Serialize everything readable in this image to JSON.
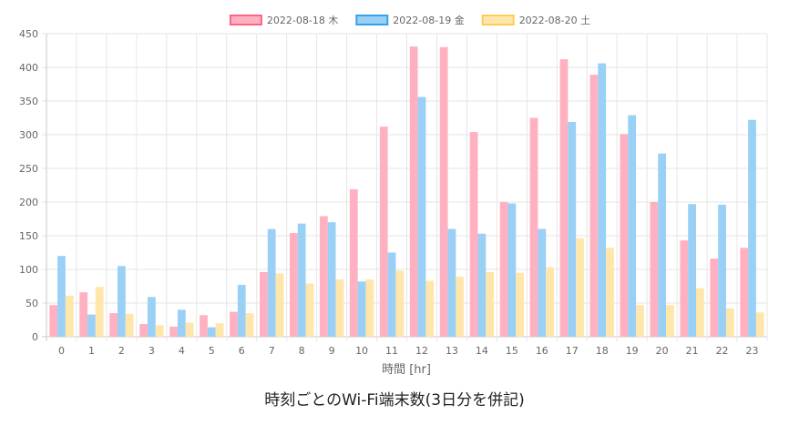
{
  "chart_data": {
    "type": "bar",
    "xlabel": "時間 [hr]",
    "ylabel": "",
    "ylim": [
      0,
      450
    ],
    "yticks": [
      0,
      50,
      100,
      150,
      200,
      250,
      300,
      350,
      400,
      450
    ],
    "grid": true,
    "legend_position": "top-center",
    "categories": [
      "0",
      "1",
      "2",
      "3",
      "4",
      "5",
      "6",
      "7",
      "8",
      "9",
      "10",
      "11",
      "12",
      "13",
      "14",
      "15",
      "16",
      "17",
      "18",
      "19",
      "20",
      "21",
      "22",
      "23"
    ],
    "series": [
      {
        "name": "2022-08-18 木",
        "color": "#ffb1c1",
        "border": "#ff6384",
        "values": [
          47,
          66,
          35,
          19,
          15,
          32,
          37,
          96,
          154,
          179,
          219,
          312,
          431,
          430,
          304,
          200,
          325,
          412,
          389,
          301,
          200,
          143,
          116,
          132
        ]
      },
      {
        "name": "2022-08-19 金",
        "color": "#9ad0f5",
        "border": "#36a2eb",
        "values": [
          120,
          33,
          105,
          59,
          40,
          14,
          77,
          160,
          168,
          170,
          82,
          125,
          356,
          160,
          153,
          198,
          160,
          319,
          406,
          329,
          272,
          197,
          196,
          322
        ]
      },
      {
        "name": "2022-08-20 土",
        "color": "#ffe6aa",
        "border": "#ffcd56",
        "values": [
          61,
          74,
          34,
          17,
          21,
          20,
          35,
          94,
          79,
          85,
          85,
          98,
          83,
          89,
          96,
          95,
          103,
          146,
          132,
          47,
          47,
          72,
          42,
          36
        ]
      }
    ]
  },
  "caption": "時刻ごとのWi-Fi端末数(3日分を併記)"
}
